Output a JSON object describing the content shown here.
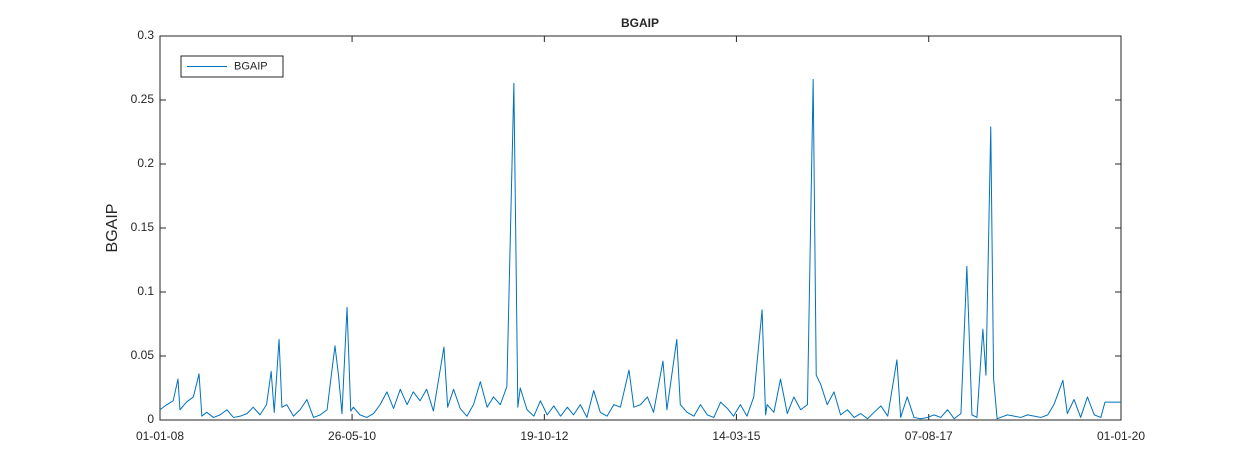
{
  "chart_data": {
    "type": "line",
    "title": "BGAIP",
    "y_label": "BGAIP",
    "x": [
      "2008-01-01",
      "2008-02-01",
      "2008-03-01",
      "2008-03-23",
      "2008-04-01",
      "2008-05-01",
      "2008-06-01",
      "2008-06-27",
      "2008-07-10",
      "2008-08-01",
      "2008-09-01",
      "2008-10-01",
      "2008-11-01",
      "2008-12-01",
      "2009-01-01",
      "2009-02-01",
      "2009-03-01",
      "2009-04-01",
      "2009-05-01",
      "2009-05-22",
      "2009-06-05",
      "2009-06-27",
      "2009-07-10",
      "2009-08-01",
      "2009-09-01",
      "2009-10-01",
      "2009-11-01",
      "2009-12-01",
      "2010-01-01",
      "2010-02-01",
      "2010-03-09",
      "2010-03-25",
      "2010-04-10",
      "2010-05-03",
      "2010-05-20",
      "2010-06-01",
      "2010-07-01",
      "2010-08-01",
      "2010-09-01",
      "2010-10-01",
      "2010-11-01",
      "2010-12-01",
      "2011-01-01",
      "2011-02-01",
      "2011-03-01",
      "2011-04-01",
      "2011-05-01",
      "2011-06-01",
      "2011-07-19",
      "2011-08-05",
      "2011-09-01",
      "2011-10-01",
      "2011-11-01",
      "2011-12-01",
      "2012-01-01",
      "2012-02-01",
      "2012-03-01",
      "2012-04-01",
      "2012-05-01",
      "2012-06-02",
      "2012-06-20",
      "2012-07-01",
      "2012-08-01",
      "2012-09-01",
      "2012-10-01",
      "2012-11-01",
      "2012-12-01",
      "2013-01-01",
      "2013-02-01",
      "2013-03-01",
      "2013-04-01",
      "2013-05-01",
      "2013-06-01",
      "2013-07-01",
      "2013-08-01",
      "2013-09-01",
      "2013-10-01",
      "2013-11-09",
      "2013-12-01",
      "2014-01-01",
      "2014-02-01",
      "2014-03-01",
      "2014-04-13",
      "2014-05-01",
      "2014-06-15",
      "2014-07-01",
      "2014-08-01",
      "2014-09-01",
      "2014-10-01",
      "2014-11-01",
      "2014-12-01",
      "2015-01-01",
      "2015-02-01",
      "2015-03-01",
      "2015-04-01",
      "2015-05-01",
      "2015-06-01",
      "2015-07-09",
      "2015-07-25",
      "2015-08-01",
      "2015-09-01",
      "2015-10-01",
      "2015-11-01",
      "2015-12-01",
      "2016-01-01",
      "2016-02-01",
      "2016-02-27",
      "2016-03-12",
      "2016-04-01",
      "2016-05-01",
      "2016-06-01",
      "2016-07-01",
      "2016-08-01",
      "2016-09-01",
      "2016-10-01",
      "2016-11-01",
      "2016-12-01",
      "2017-01-01",
      "2017-02-01",
      "2017-03-15",
      "2017-04-01",
      "2017-05-01",
      "2017-06-01",
      "2017-07-01",
      "2017-08-01",
      "2017-09-01",
      "2017-10-01",
      "2017-11-01",
      "2017-12-01",
      "2018-01-01",
      "2018-01-28",
      "2018-02-20",
      "2018-03-15",
      "2018-04-11",
      "2018-04-25",
      "2018-05-17",
      "2018-05-30",
      "2018-06-15",
      "2018-07-01",
      "2018-08-01",
      "2018-09-01",
      "2018-10-01",
      "2018-11-01",
      "2018-12-01",
      "2019-01-01",
      "2019-02-01",
      "2019-03-01",
      "2019-04-11",
      "2019-05-01",
      "2019-06-01",
      "2019-07-01",
      "2019-08-01",
      "2019-09-01",
      "2019-10-01",
      "2019-10-20",
      "2019-11-01",
      "2019-12-01",
      "2020-01-01"
    ],
    "series": [
      {
        "name": "BGAIP",
        "color": "#0072bd",
        "values": [
          0.008,
          0.012,
          0.015,
          0.032,
          0.008,
          0.014,
          0.018,
          0.036,
          0.003,
          0.006,
          0.002,
          0.004,
          0.008,
          0.002,
          0.003,
          0.005,
          0.01,
          0.004,
          0.012,
          0.038,
          0.006,
          0.063,
          0.01,
          0.012,
          0.003,
          0.008,
          0.016,
          0.002,
          0.004,
          0.008,
          0.058,
          0.035,
          0.005,
          0.088,
          0.007,
          0.01,
          0.004,
          0.002,
          0.005,
          0.012,
          0.022,
          0.009,
          0.024,
          0.012,
          0.022,
          0.015,
          0.024,
          0.007,
          0.057,
          0.01,
          0.024,
          0.009,
          0.003,
          0.012,
          0.03,
          0.01,
          0.018,
          0.012,
          0.026,
          0.263,
          0.01,
          0.025,
          0.008,
          0.003,
          0.015,
          0.004,
          0.011,
          0.003,
          0.01,
          0.004,
          0.012,
          0.002,
          0.023,
          0.006,
          0.003,
          0.012,
          0.01,
          0.039,
          0.01,
          0.012,
          0.018,
          0.006,
          0.046,
          0.008,
          0.063,
          0.012,
          0.006,
          0.003,
          0.012,
          0.004,
          0.002,
          0.014,
          0.009,
          0.003,
          0.012,
          0.003,
          0.018,
          0.086,
          0.004,
          0.012,
          0.006,
          0.032,
          0.005,
          0.018,
          0.008,
          0.012,
          0.266,
          0.035,
          0.028,
          0.012,
          0.022,
          0.004,
          0.008,
          0.002,
          0.005,
          0.001,
          0.006,
          0.011,
          0.003,
          0.047,
          0.002,
          0.018,
          0.002,
          0.001,
          0.002,
          0.004,
          0.002,
          0.008,
          0.001,
          0.005,
          0.12,
          0.004,
          0.002,
          0.071,
          0.035,
          0.229,
          0.032,
          0.001,
          0.002,
          0.004,
          0.003,
          0.002,
          0.004,
          0.003,
          0.002,
          0.004,
          0.012,
          0.031,
          0.005,
          0.016,
          0.002,
          0.018,
          0.004,
          0.002,
          0.014,
          0.014,
          0.014,
          0.014
        ]
      }
    ],
    "xlim": [
      "2008-01-01",
      "2020-01-01"
    ],
    "xticks": [
      {
        "value": "2008-01-01",
        "label": "01-01-08"
      },
      {
        "value": "2010-05-26",
        "label": "26-05-10"
      },
      {
        "value": "2012-10-19",
        "label": "19-10-12"
      },
      {
        "value": "2015-03-14",
        "label": "14-03-15"
      },
      {
        "value": "2017-08-07",
        "label": "07-08-17"
      },
      {
        "value": "2020-01-01",
        "label": "01-01-20"
      }
    ],
    "ylim": [
      0,
      0.3
    ],
    "yticks": [
      0,
      0.05,
      0.1,
      0.15,
      0.2,
      0.25,
      0.3
    ],
    "grid": false,
    "legend": "upper-left"
  }
}
